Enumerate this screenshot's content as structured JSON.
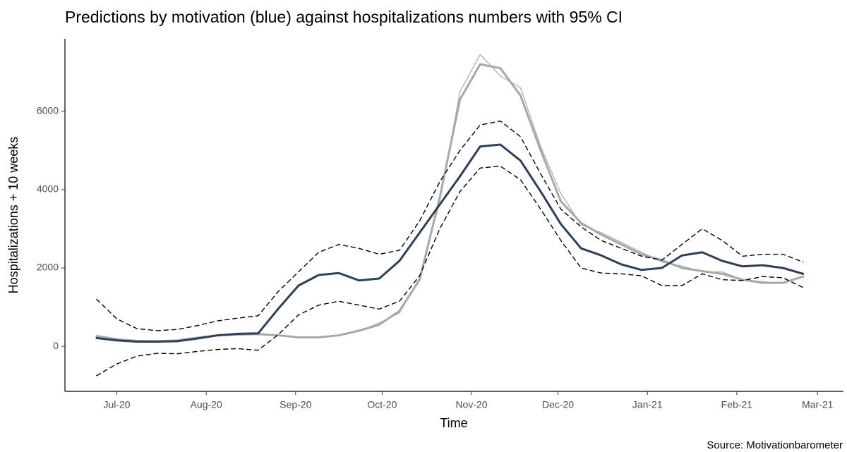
{
  "chart_data": {
    "type": "line",
    "title": "Predictions by motivation (blue) against hospitalizations numbers with 95% CI",
    "xlabel": "Time",
    "ylabel": "Hospitalizations + 10 weeks",
    "caption": "Source: Motivationbarometer",
    "x": [
      -7,
      0,
      7,
      14,
      21,
      28,
      35,
      42,
      49,
      56,
      63,
      70,
      77,
      84,
      91,
      98,
      105,
      112,
      119,
      126,
      133,
      140,
      147,
      154,
      161,
      168,
      175,
      182,
      189,
      196,
      203,
      210,
      217,
      224,
      231,
      238
    ],
    "series": [
      {
        "color": "#b0b0b0",
        "linewidth": 1.3,
        "dash": false,
        "values": [
          280,
          170,
          150,
          120,
          160,
          210,
          290,
          290,
          320,
          270,
          240,
          220,
          290,
          380,
          600,
          850,
          1750,
          3700,
          6500,
          7450,
          6900,
          6600,
          5100,
          3900,
          3100,
          2900,
          2650,
          2400,
          2150,
          2050,
          1900,
          1900,
          1700,
          1650,
          1600,
          1800
        ]
      },
      {
        "color": "#a8a8a8",
        "linewidth": 3,
        "dash": false,
        "values": [
          260,
          180,
          140,
          130,
          150,
          220,
          280,
          300,
          310,
          280,
          230,
          230,
          280,
          400,
          550,
          900,
          1700,
          3800,
          6300,
          7200,
          7100,
          6400,
          5000,
          3700,
          3150,
          2850,
          2600,
          2350,
          2200,
          2000,
          1920,
          1850,
          1700,
          1620,
          1620,
          1780
        ]
      },
      {
        "color": "#000000",
        "linewidth": 1.4,
        "dash": true,
        "values": [
          1200,
          700,
          450,
          400,
          430,
          530,
          650,
          720,
          780,
          1400,
          1900,
          2400,
          2600,
          2500,
          2350,
          2450,
          3200,
          4200,
          5000,
          5650,
          5750,
          5350,
          4400,
          3500,
          3050,
          2700,
          2500,
          2300,
          2200,
          2600,
          3000,
          2700,
          2300,
          2350,
          2350,
          2150
        ]
      },
      {
        "color": "#000000",
        "linewidth": 1.4,
        "dash": true,
        "values": [
          -750,
          -450,
          -250,
          -180,
          -190,
          -130,
          -80,
          -60,
          -100,
          300,
          800,
          1050,
          1150,
          1050,
          950,
          1150,
          1800,
          3000,
          3950,
          4550,
          4600,
          4250,
          3500,
          2700,
          2000,
          1870,
          1850,
          1800,
          1550,
          1550,
          1850,
          1700,
          1680,
          1780,
          1750,
          1500
        ]
      },
      {
        "color": "#2e4057",
        "linewidth": 3,
        "dash": false,
        "values": [
          210,
          150,
          120,
          120,
          130,
          200,
          280,
          320,
          330,
          960,
          1550,
          1820,
          1870,
          1680,
          1730,
          2180,
          2900,
          3620,
          4340,
          5100,
          5150,
          4740,
          3950,
          3120,
          2500,
          2320,
          2090,
          1950,
          2000,
          2320,
          2400,
          2180,
          2040,
          2070,
          2000,
          1850
        ]
      }
    ],
    "xlim": [
      -18,
      252
    ],
    "xticks": [
      {
        "value": 0,
        "label": "Jul-20"
      },
      {
        "value": 31,
        "label": "Aug-20"
      },
      {
        "value": 62,
        "label": "Sep-20"
      },
      {
        "value": 92,
        "label": "Oct-20"
      },
      {
        "value": 123,
        "label": "Nov-20"
      },
      {
        "value": 153,
        "label": "Dec-20"
      },
      {
        "value": 184,
        "label": "Jan-21"
      },
      {
        "value": 215,
        "label": "Feb-21"
      },
      {
        "value": 243,
        "label": "Mar-21"
      }
    ],
    "ylim": [
      -1150,
      7850
    ],
    "yticks": [
      0,
      2000,
      4000,
      6000
    ],
    "grid": false
  }
}
